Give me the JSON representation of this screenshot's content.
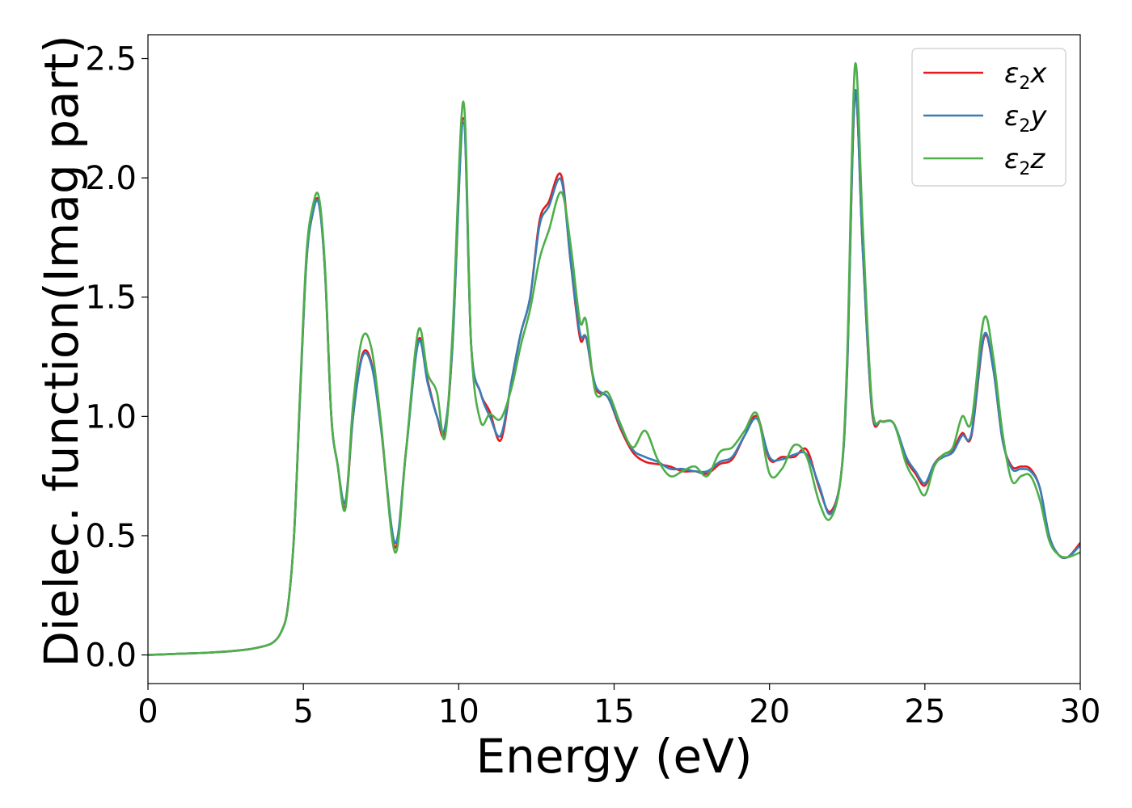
{
  "chart_data": {
    "type": "line",
    "xlabel": "Energy (eV)",
    "ylabel": "Dielec. function(Imag part)",
    "xlim": [
      0,
      30
    ],
    "ylim": [
      -0.12,
      2.6
    ],
    "xticks": [
      0,
      5,
      10,
      15,
      20,
      25,
      30
    ],
    "xtick_labels": [
      "0",
      "5",
      "10",
      "15",
      "20",
      "25",
      "30"
    ],
    "yticks": [
      0.0,
      0.5,
      1.0,
      1.5,
      2.0,
      2.5
    ],
    "ytick_labels": [
      "0.0",
      "0.5",
      "1.0",
      "1.5",
      "2.0",
      "2.5"
    ],
    "grid": false,
    "legend_position": "top-right",
    "colors": {
      "ex": "#e41a1c",
      "ey": "#377eb8",
      "ez": "#4daf4a"
    },
    "series": [
      {
        "legend_symbol": "ε",
        "legend_subscript": "2",
        "legend_suffix": "x",
        "color": "#e41a1c",
        "x": [
          0,
          1,
          2,
          3,
          3.5,
          4,
          4.3,
          4.5,
          4.7,
          4.9,
          5.1,
          5.3,
          5.5,
          5.7,
          5.9,
          6.1,
          6.35,
          6.6,
          6.9,
          7.2,
          7.5,
          7.95,
          8.3,
          8.7,
          9.0,
          9.3,
          9.55,
          9.8,
          10.15,
          10.4,
          10.7,
          11.0,
          11.35,
          11.7,
          12.0,
          12.3,
          12.6,
          12.9,
          13.3,
          13.6,
          13.9,
          14.1,
          14.4,
          14.8,
          15.2,
          15.6,
          16.0,
          16.4,
          16.8,
          17.2,
          17.6,
          18.0,
          18.4,
          18.8,
          19.2,
          19.6,
          20.0,
          20.4,
          20.8,
          21.2,
          21.6,
          21.95,
          22.3,
          22.5,
          22.75,
          23.0,
          23.3,
          23.6,
          24.0,
          24.4,
          24.7,
          25.0,
          25.3,
          25.6,
          25.9,
          26.2,
          26.5,
          26.9,
          27.2,
          27.5,
          27.8,
          28.1,
          28.4,
          28.7,
          29.0,
          29.3,
          29.6,
          30.0
        ],
        "values": [
          0.0,
          0.005,
          0.01,
          0.02,
          0.03,
          0.05,
          0.1,
          0.2,
          0.5,
          1.1,
          1.65,
          1.85,
          1.9,
          1.6,
          1.0,
          0.8,
          0.62,
          1.0,
          1.26,
          1.22,
          0.95,
          0.45,
          0.85,
          1.32,
          1.15,
          1.0,
          0.93,
          1.3,
          2.25,
          1.3,
          1.1,
          1.02,
          0.9,
          1.15,
          1.35,
          1.5,
          1.82,
          1.9,
          2.01,
          1.65,
          1.33,
          1.33,
          1.12,
          1.08,
          0.95,
          0.85,
          0.81,
          0.8,
          0.79,
          0.77,
          0.77,
          0.76,
          0.8,
          0.82,
          0.92,
          1.0,
          0.82,
          0.83,
          0.83,
          0.86,
          0.7,
          0.6,
          0.75,
          1.2,
          2.35,
          1.7,
          1.02,
          0.98,
          0.97,
          0.82,
          0.76,
          0.71,
          0.8,
          0.84,
          0.86,
          0.93,
          0.92,
          1.33,
          1.2,
          0.9,
          0.79,
          0.79,
          0.78,
          0.7,
          0.5,
          0.42,
          0.41,
          0.47
        ]
      },
      {
        "legend_symbol": "ε",
        "legend_subscript": "2",
        "legend_suffix": "y",
        "color": "#377eb8",
        "x": [
          0,
          1,
          2,
          3,
          3.5,
          4,
          4.3,
          4.5,
          4.7,
          4.9,
          5.1,
          5.3,
          5.5,
          5.7,
          5.9,
          6.1,
          6.35,
          6.6,
          6.9,
          7.2,
          7.5,
          7.95,
          8.3,
          8.7,
          9.0,
          9.3,
          9.55,
          9.8,
          10.15,
          10.4,
          10.7,
          11.0,
          11.35,
          11.7,
          12.0,
          12.3,
          12.6,
          12.9,
          13.3,
          13.6,
          13.9,
          14.1,
          14.4,
          14.8,
          15.2,
          15.6,
          16.0,
          16.4,
          16.8,
          17.2,
          17.6,
          18.0,
          18.4,
          18.8,
          19.2,
          19.6,
          20.0,
          20.4,
          20.8,
          21.2,
          21.6,
          21.95,
          22.3,
          22.5,
          22.75,
          23.0,
          23.3,
          23.6,
          24.0,
          24.4,
          24.7,
          25.0,
          25.3,
          25.6,
          25.9,
          26.2,
          26.5,
          26.9,
          27.2,
          27.5,
          27.8,
          28.1,
          28.4,
          28.7,
          29.0,
          29.3,
          29.6,
          30.0
        ],
        "values": [
          0.0,
          0.005,
          0.01,
          0.02,
          0.03,
          0.05,
          0.1,
          0.2,
          0.5,
          1.1,
          1.65,
          1.85,
          1.89,
          1.6,
          1.0,
          0.8,
          0.64,
          1.0,
          1.25,
          1.21,
          0.95,
          0.47,
          0.85,
          1.31,
          1.14,
          1.0,
          0.95,
          1.3,
          2.23,
          1.3,
          1.1,
          1.0,
          0.92,
          1.15,
          1.35,
          1.5,
          1.8,
          1.88,
          1.99,
          1.65,
          1.35,
          1.33,
          1.13,
          1.08,
          0.96,
          0.86,
          0.83,
          0.81,
          0.78,
          0.78,
          0.77,
          0.77,
          0.81,
          0.83,
          0.92,
          0.99,
          0.83,
          0.82,
          0.84,
          0.84,
          0.71,
          0.59,
          0.75,
          1.2,
          2.36,
          1.7,
          1.03,
          0.98,
          0.97,
          0.83,
          0.77,
          0.72,
          0.8,
          0.83,
          0.85,
          0.92,
          0.93,
          1.34,
          1.2,
          0.9,
          0.78,
          0.78,
          0.77,
          0.7,
          0.5,
          0.42,
          0.41,
          0.46
        ]
      },
      {
        "legend_symbol": "ε",
        "legend_subscript": "2",
        "legend_suffix": "z",
        "color": "#4daf4a",
        "x": [
          0,
          1,
          2,
          3,
          3.5,
          4,
          4.3,
          4.5,
          4.7,
          4.9,
          5.1,
          5.3,
          5.5,
          5.7,
          5.9,
          6.1,
          6.35,
          6.6,
          6.9,
          7.2,
          7.5,
          7.95,
          8.3,
          8.7,
          9.0,
          9.3,
          9.55,
          9.8,
          10.15,
          10.4,
          10.7,
          11.0,
          11.35,
          11.7,
          12.0,
          12.3,
          12.6,
          12.9,
          13.3,
          13.6,
          13.9,
          14.1,
          14.4,
          14.8,
          15.2,
          15.6,
          16.0,
          16.4,
          16.8,
          17.2,
          17.6,
          18.0,
          18.4,
          18.8,
          19.2,
          19.6,
          20.0,
          20.4,
          20.8,
          21.2,
          21.6,
          21.95,
          22.3,
          22.5,
          22.75,
          23.0,
          23.3,
          23.6,
          24.0,
          24.4,
          24.7,
          25.0,
          25.3,
          25.6,
          25.9,
          26.2,
          26.5,
          26.9,
          27.2,
          27.5,
          27.8,
          28.1,
          28.4,
          28.7,
          29.0,
          29.3,
          29.6,
          30.0
        ],
        "values": [
          0.0,
          0.005,
          0.01,
          0.02,
          0.03,
          0.05,
          0.1,
          0.2,
          0.5,
          1.12,
          1.68,
          1.88,
          1.92,
          1.62,
          1.0,
          0.8,
          0.61,
          1.05,
          1.33,
          1.28,
          0.97,
          0.43,
          0.85,
          1.36,
          1.18,
          1.1,
          0.91,
          1.35,
          2.32,
          1.3,
          0.98,
          1.01,
          0.99,
          1.12,
          1.3,
          1.45,
          1.66,
          1.78,
          1.94,
          1.72,
          1.4,
          1.4,
          1.1,
          1.1,
          0.97,
          0.87,
          0.94,
          0.82,
          0.75,
          0.77,
          0.79,
          0.75,
          0.85,
          0.87,
          0.94,
          1.01,
          0.76,
          0.78,
          0.88,
          0.83,
          0.64,
          0.57,
          0.75,
          1.25,
          2.47,
          1.8,
          1.05,
          0.98,
          0.97,
          0.8,
          0.73,
          0.67,
          0.79,
          0.84,
          0.87,
          1.0,
          0.98,
          1.41,
          1.25,
          0.93,
          0.73,
          0.75,
          0.75,
          0.65,
          0.48,
          0.42,
          0.41,
          0.43
        ]
      }
    ]
  }
}
